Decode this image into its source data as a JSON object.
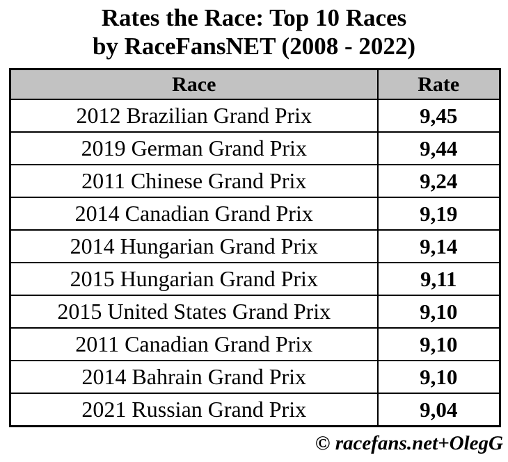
{
  "title": {
    "line1": "Rates the Race: Top 10 Races",
    "line2": "by RaceFansNET (2008 - 2022)"
  },
  "table": {
    "headers": {
      "race": "Race",
      "rate": "Rate"
    },
    "rows": [
      {
        "race": "2012 Brazilian Grand Prix",
        "rate": "9,45"
      },
      {
        "race": "2019 German Grand Prix",
        "rate": "9,44"
      },
      {
        "race": "2011 Chinese Grand Prix",
        "rate": "9,24"
      },
      {
        "race": "2014 Canadian Grand Prix",
        "rate": "9,19"
      },
      {
        "race": "2014 Hungarian Grand Prix",
        "rate": "9,14"
      },
      {
        "race": "2015 Hungarian Grand Prix",
        "rate": "9,11"
      },
      {
        "race": "2015 United States Grand Prix",
        "rate": "9,10"
      },
      {
        "race": "2011 Canadian Grand Prix",
        "rate": "9,10"
      },
      {
        "race": "2014 Bahrain Grand Prix",
        "rate": "9,10"
      },
      {
        "race": "2021 Russian Grand Prix",
        "rate": "9,04"
      }
    ]
  },
  "footer": {
    "credit": "© racefans.net+OlegG"
  },
  "colors": {
    "header_background": "#c2c2c2",
    "border": "#000000",
    "text": "#000000",
    "page_background": "#ffffff"
  },
  "chart_data": {
    "type": "table",
    "title": "Rates the Race: Top 10 Races by RaceFansNET (2008 - 2022)",
    "columns": [
      "Race",
      "Rate"
    ],
    "categories": [
      "2012 Brazilian Grand Prix",
      "2019 German Grand Prix",
      "2011 Chinese Grand Prix",
      "2014 Canadian Grand Prix",
      "2014 Hungarian Grand Prix",
      "2015 Hungarian Grand Prix",
      "2015 United States Grand Prix",
      "2011 Canadian Grand Prix",
      "2014 Bahrain Grand Prix",
      "2021 Russian Grand Prix"
    ],
    "values": [
      9.45,
      9.44,
      9.24,
      9.19,
      9.14,
      9.11,
      9.1,
      9.1,
      9.1,
      9.04
    ],
    "value_format": "comma-decimal",
    "source": "© racefans.net+OlegG"
  }
}
